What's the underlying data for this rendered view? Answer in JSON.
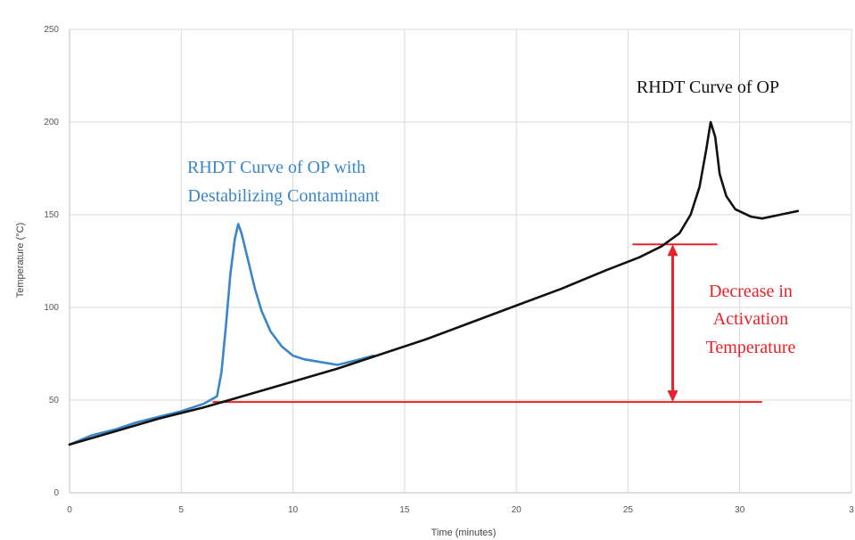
{
  "chart_data": {
    "type": "line",
    "xlabel": "Time (minutes)",
    "ylabel": "Temperature (°C)",
    "xlim": [
      0,
      35
    ],
    "ylim": [
      0,
      250
    ],
    "grid": true,
    "x_ticks": [
      "0",
      "5",
      "10",
      "15",
      "20",
      "25",
      "30",
      "3"
    ],
    "y_ticks": [
      "0",
      "50",
      "100",
      "150",
      "200",
      "250"
    ],
    "series": [
      {
        "name": "RHDT Curve of OP",
        "color": "#111111",
        "points": [
          [
            0,
            26
          ],
          [
            2,
            33
          ],
          [
            4,
            40
          ],
          [
            6,
            46
          ],
          [
            8,
            53
          ],
          [
            10,
            60
          ],
          [
            12,
            67
          ],
          [
            14,
            75
          ],
          [
            16,
            83
          ],
          [
            18,
            92
          ],
          [
            20,
            101
          ],
          [
            22,
            110
          ],
          [
            24,
            120
          ],
          [
            25.5,
            127
          ],
          [
            26.5,
            133
          ],
          [
            27.3,
            140
          ],
          [
            27.8,
            150
          ],
          [
            28.2,
            165
          ],
          [
            28.5,
            185
          ],
          [
            28.7,
            200
          ],
          [
            28.9,
            192
          ],
          [
            29.1,
            172
          ],
          [
            29.4,
            160
          ],
          [
            29.8,
            153
          ],
          [
            30.5,
            149
          ],
          [
            31,
            148
          ],
          [
            31.8,
            150
          ],
          [
            32.6,
            152
          ]
        ]
      },
      {
        "name": "RHDT Curve of OP with Destabilizing Contaminant",
        "color": "#3a86c8",
        "points": [
          [
            0,
            26
          ],
          [
            1,
            31
          ],
          [
            2,
            34
          ],
          [
            3,
            38
          ],
          [
            4,
            41
          ],
          [
            5,
            44
          ],
          [
            6,
            48
          ],
          [
            6.6,
            52
          ],
          [
            6.8,
            65
          ],
          [
            7,
            90
          ],
          [
            7.2,
            118
          ],
          [
            7.4,
            137
          ],
          [
            7.55,
            145
          ],
          [
            7.7,
            140
          ],
          [
            8,
            125
          ],
          [
            8.3,
            110
          ],
          [
            8.6,
            98
          ],
          [
            9,
            87
          ],
          [
            9.5,
            79
          ],
          [
            10,
            74
          ],
          [
            10.5,
            72
          ],
          [
            11,
            71
          ],
          [
            12,
            69
          ],
          [
            13,
            72
          ],
          [
            13.6,
            74
          ]
        ]
      }
    ],
    "annotations": {
      "op": "RHDT Curve of OP",
      "contaminant_1": "RHDT Curve of OP with",
      "contaminant_2": "Destabilizing Contaminant",
      "decrease_1": "Decrease in",
      "decrease_2": "Activation",
      "decrease_3": "Temperature"
    },
    "colors": {
      "op": "#111111",
      "contaminant": "#3a86c8",
      "marker": "#e8212a"
    },
    "reference_lines": [
      {
        "y": 49,
        "x_from": 6.4,
        "x_to": 31
      },
      {
        "y": 134,
        "x_from": 25.2,
        "x_to": 29
      }
    ],
    "arrow": {
      "x": 27,
      "y_from": 49,
      "y_to": 134
    }
  }
}
